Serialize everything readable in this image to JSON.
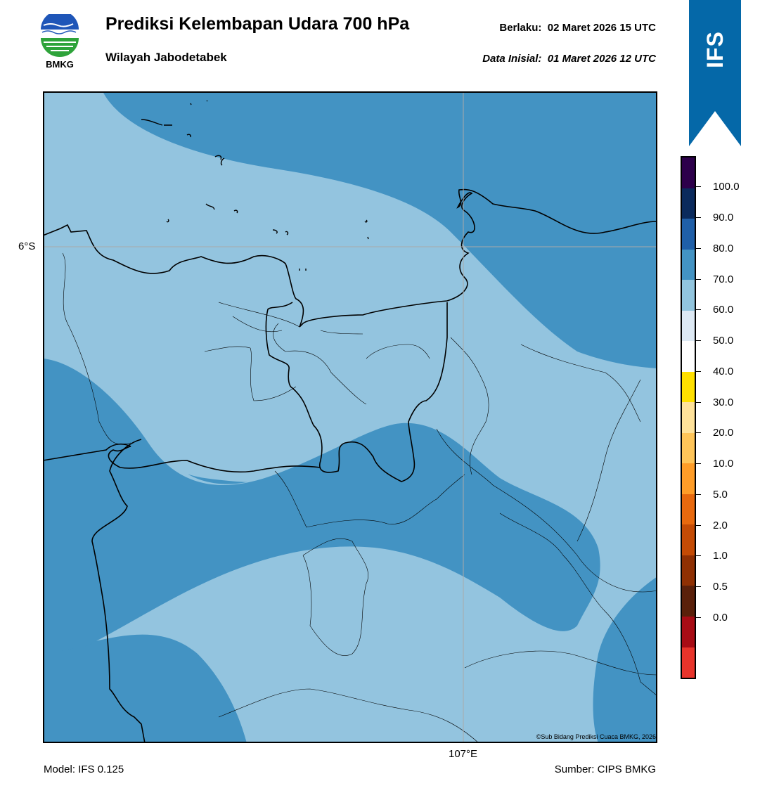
{
  "header": {
    "logo_text": "BMKG",
    "title": "Prediksi Kelembapan Udara 700 hPa",
    "region": "Wilayah Jabodetabek",
    "valid_label": "Berlaku:",
    "valid_value": "02 Maret 2026 15 UTC",
    "init_label": "Data Inisial:",
    "init_value": "01 Maret 2026 12 UTC",
    "badge": "IFS"
  },
  "map": {
    "lat_label": "6°S",
    "lon_label": "107°E",
    "copyright": "©Sub Bidang Prediksi Cuaca BMKG, 2026",
    "colors": {
      "light": "#93c4df",
      "medium": "#4393c3",
      "lines": "#000000",
      "grid": "#aaaaaa"
    }
  },
  "colorbar": {
    "labels": [
      "100.0",
      "90.0",
      "80.0",
      "70.0",
      "60.0",
      "50.0",
      "40.0",
      "30.0",
      "20.0",
      "10.0",
      "5.0",
      "2.0",
      "1.0",
      "0.5",
      "0.0"
    ],
    "colors": [
      "#2d004b",
      "#0a2a5c",
      "#1f5fa8",
      "#4393c3",
      "#92c5de",
      "#dde9f4",
      "#ffffff",
      "#ffe000",
      "#ffe29a",
      "#ffc559",
      "#ff9d28",
      "#e8690e",
      "#c44b05",
      "#8f3003",
      "#5a200a",
      "#a80c15",
      "#e8342b"
    ]
  },
  "footer": {
    "model": "Model: IFS 0.125",
    "source": "Sumber: CIPS BMKG"
  }
}
